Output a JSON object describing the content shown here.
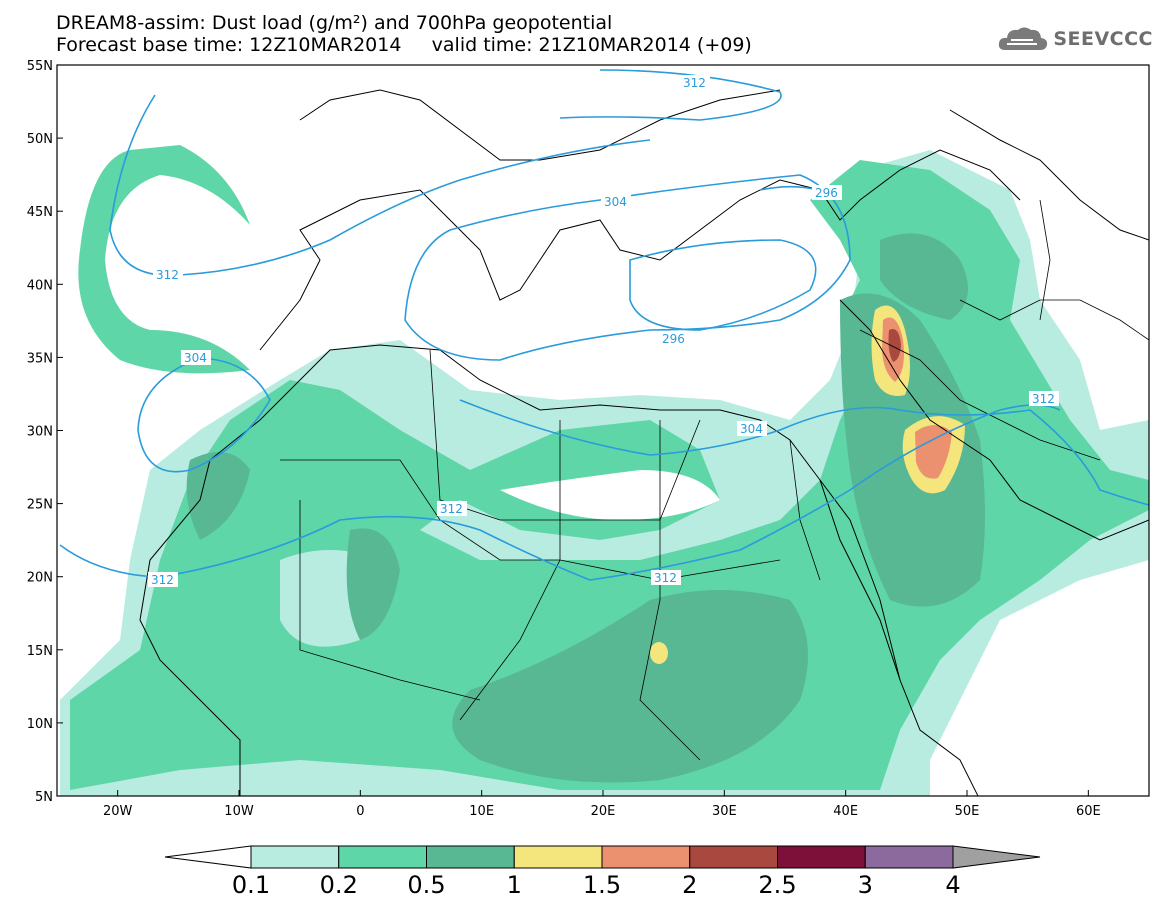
{
  "header": {
    "title_line1": "DREAM8-assim: Dust load (g/m²) and 700hPa geopotential",
    "title_line2": "Forecast base time: 12Z10MAR2014     valid time: 21Z10MAR2014 (+09)"
  },
  "logo": {
    "text": "SEEVCCC",
    "icon": "cloud-logo-icon"
  },
  "axes": {
    "lat_labels": [
      "55N",
      "50N",
      "45N",
      "40N",
      "35N",
      "30N",
      "25N",
      "20N",
      "15N",
      "10N",
      "5N"
    ],
    "lon_labels": [
      "20W",
      "10W",
      "0",
      "10E",
      "20E",
      "30E",
      "40E",
      "50E",
      "60E"
    ],
    "lat_range": [
      5,
      55
    ],
    "lon_range": [
      -25,
      65
    ]
  },
  "contours": {
    "labels": [
      "312",
      "304",
      "296",
      "312",
      "304",
      "312",
      "304",
      "312",
      "312",
      "296",
      "312"
    ]
  },
  "colorbar": {
    "labels": [
      "0.1",
      "0.2",
      "0.5",
      "1",
      "1.5",
      "2",
      "2.5",
      "3",
      "4"
    ],
    "colors": [
      "#b8ece0",
      "#5ed6a8",
      "#58b894",
      "#f4e67c",
      "#eb9170",
      "#a8483e",
      "#7c1038",
      "#8c6a9e"
    ],
    "under_color": "#ffffff",
    "over_color": "#a0a0a0"
  },
  "colors": {
    "contour_line": "#2a9bdb",
    "land_border": "#000000"
  }
}
